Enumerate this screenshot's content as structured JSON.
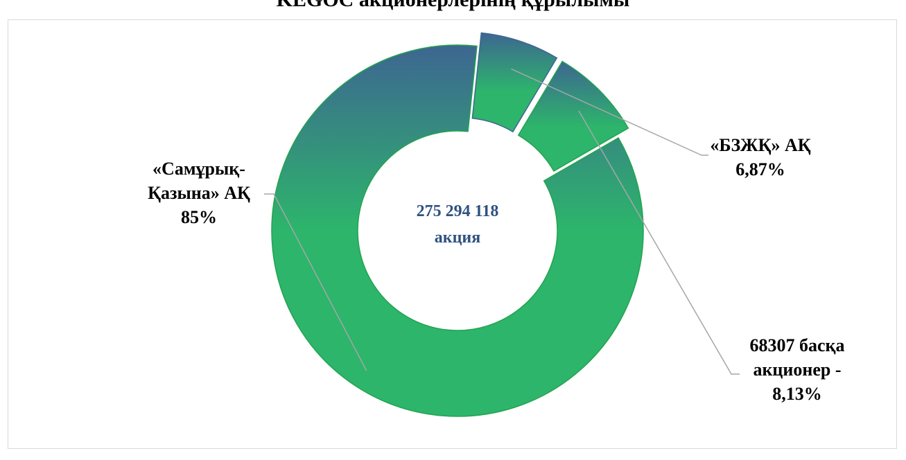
{
  "chart_data": {
    "type": "pie",
    "variant": "doughnut",
    "title": "KEGOC акционерлерінің құрылымы",
    "center_label": [
      "275 294 118",
      "акция"
    ],
    "slices": [
      {
        "name": "«Самұрық-Қазына» АҚ",
        "value": 85,
        "label_lines": [
          "«Самұрық-",
          "Қазына» АҚ",
          "85%"
        ],
        "exploded": false
      },
      {
        "name": "«БЗЖҚ» АҚ",
        "value": 6.87,
        "label_lines": [
          "«БЗЖҚ» АҚ",
          "6,87%"
        ],
        "exploded": true
      },
      {
        "name": "68307 басқа акционер",
        "value": 8.13,
        "label_lines": [
          "68307 басқа",
          "акционер -",
          "8,13%"
        ],
        "exploded": true
      }
    ],
    "legend": "none",
    "colors": {
      "fill_bottom": "#2db56b",
      "fill_top": "#3d6691",
      "border": "#22a34f",
      "leader_line": "#a6a6a6"
    }
  }
}
